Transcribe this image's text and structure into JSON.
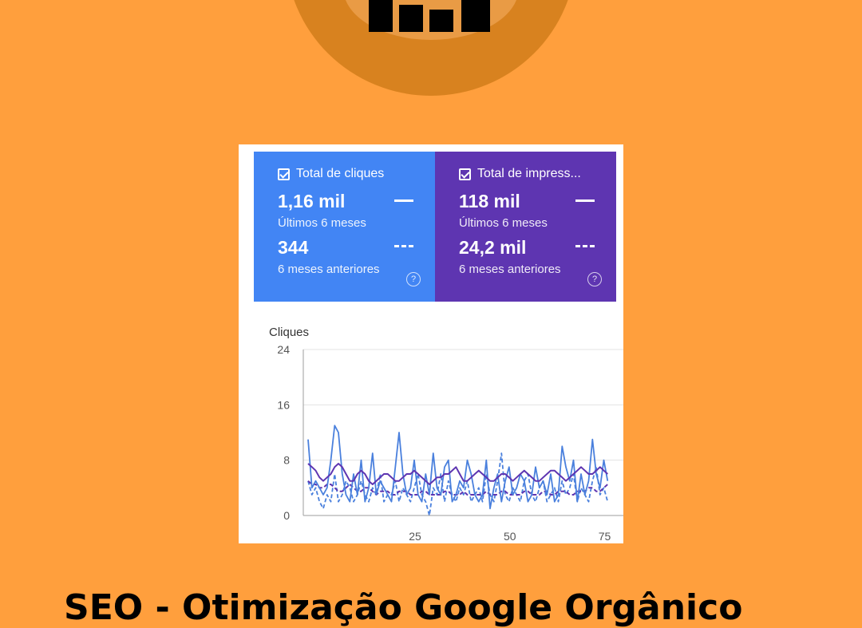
{
  "metrics": {
    "clicks": {
      "label": "Total de cliques",
      "current_value": "1,16 mil",
      "current_period": "Últimos 6 meses",
      "previous_value": "344",
      "previous_period": "6 meses anteriores",
      "color": "#4285F4"
    },
    "impressions": {
      "label": "Total de impress...",
      "current_value": "118 mil",
      "current_period": "Últimos 6 meses",
      "previous_value": "24,2 mil",
      "previous_period": "6 meses anteriores",
      "color": "#5E35B1"
    }
  },
  "help_glyph": "?",
  "caption": "SEO - Otimização Google Orgânico",
  "chart_data": {
    "type": "line",
    "ylabel": "Cliques",
    "ylim": [
      0,
      24
    ],
    "yticks": [
      "24",
      "16",
      "8",
      "0"
    ],
    "xticks": [
      "25",
      "50",
      "75"
    ],
    "grid": true,
    "series": [
      {
        "style": "clicks-current",
        "color": "#4A80DD",
        "dashed": false,
        "values": [
          11,
          4,
          5,
          4,
          3,
          4,
          8,
          13,
          12,
          6,
          3,
          2,
          6,
          3,
          8,
          2,
          4,
          9,
          3,
          5,
          4,
          3,
          2,
          7,
          12,
          6,
          3,
          4,
          8,
          3,
          2,
          6,
          3,
          9,
          4,
          3,
          7,
          8,
          2,
          3,
          5,
          4,
          8,
          6,
          3,
          2,
          3,
          8,
          1,
          4,
          6,
          2,
          5,
          7,
          3,
          4,
          6,
          5,
          2,
          3,
          7,
          4,
          5,
          3,
          6,
          2,
          3,
          10,
          7,
          5,
          8,
          2,
          6,
          3,
          5,
          11,
          6,
          4,
          8,
          5
        ]
      },
      {
        "style": "clicks-previous",
        "color": "#4A80DD",
        "dashed": true,
        "values": [
          5,
          3,
          4,
          2,
          1,
          3,
          2,
          6,
          2,
          3,
          5,
          4,
          2,
          3,
          5,
          3,
          2,
          4,
          3,
          6,
          2,
          3,
          3,
          5,
          2,
          4,
          3,
          2,
          4,
          6,
          3,
          2,
          0,
          4,
          3,
          6,
          2,
          5,
          3,
          2,
          4,
          3,
          5,
          2,
          3,
          4,
          2,
          6,
          3,
          2,
          5,
          9,
          3,
          2,
          4,
          3,
          2,
          5,
          6,
          3,
          2,
          4,
          5,
          2,
          3,
          4,
          2,
          5,
          3,
          4,
          6,
          2,
          4,
          3,
          2,
          5,
          7,
          3,
          4,
          2
        ]
      },
      {
        "style": "impressions-current",
        "color": "#5E35B1",
        "dashed": false,
        "values": [
          7.5,
          7,
          6.5,
          5.5,
          5,
          5.5,
          6,
          7,
          7.5,
          7,
          6,
          5,
          5,
          6,
          6.5,
          6,
          5,
          4.5,
          5,
          5.5,
          6,
          6,
          5.5,
          5,
          5,
          5.5,
          6,
          6,
          6.5,
          6,
          5.5,
          5,
          4.5,
          5,
          5.5,
          5.5,
          6,
          6,
          6.5,
          7,
          6,
          5,
          5,
          5.5,
          6,
          6.5,
          6,
          5.5,
          5,
          5,
          5.5,
          6,
          6,
          5.5,
          5,
          5.5,
          6,
          6.5,
          6,
          5.5,
          5,
          5,
          5.5,
          6,
          6.5,
          6.5,
          6,
          5.5,
          5,
          5.5,
          6,
          6.5,
          7,
          6.5,
          6,
          6,
          6.5,
          7,
          6.5,
          6
        ]
      },
      {
        "style": "impressions-previous",
        "color": "#5E35B1",
        "dashed": true,
        "values": [
          5,
          4.5,
          4.5,
          4,
          4,
          4.5,
          4.5,
          4,
          3.5,
          3.5,
          4,
          4.5,
          4,
          3.5,
          3.5,
          4,
          4,
          3.5,
          3,
          3.5,
          3.5,
          3.5,
          3,
          3,
          3.5,
          3.5,
          3.5,
          3,
          3,
          3,
          3.5,
          3.5,
          3,
          3,
          3,
          3,
          3.5,
          3.5,
          3,
          3,
          3,
          3.5,
          3,
          3,
          3,
          3,
          3,
          3.5,
          3,
          3,
          3,
          3.5,
          3.5,
          3,
          3,
          3,
          3,
          3.5,
          3.5,
          3,
          3,
          3,
          3.5,
          3.5,
          3,
          3,
          3.5,
          3.5,
          3.5,
          3,
          3,
          3.5,
          3.5,
          3.5,
          4,
          4,
          3.5,
          3.5,
          4,
          4.5
        ]
      }
    ]
  }
}
